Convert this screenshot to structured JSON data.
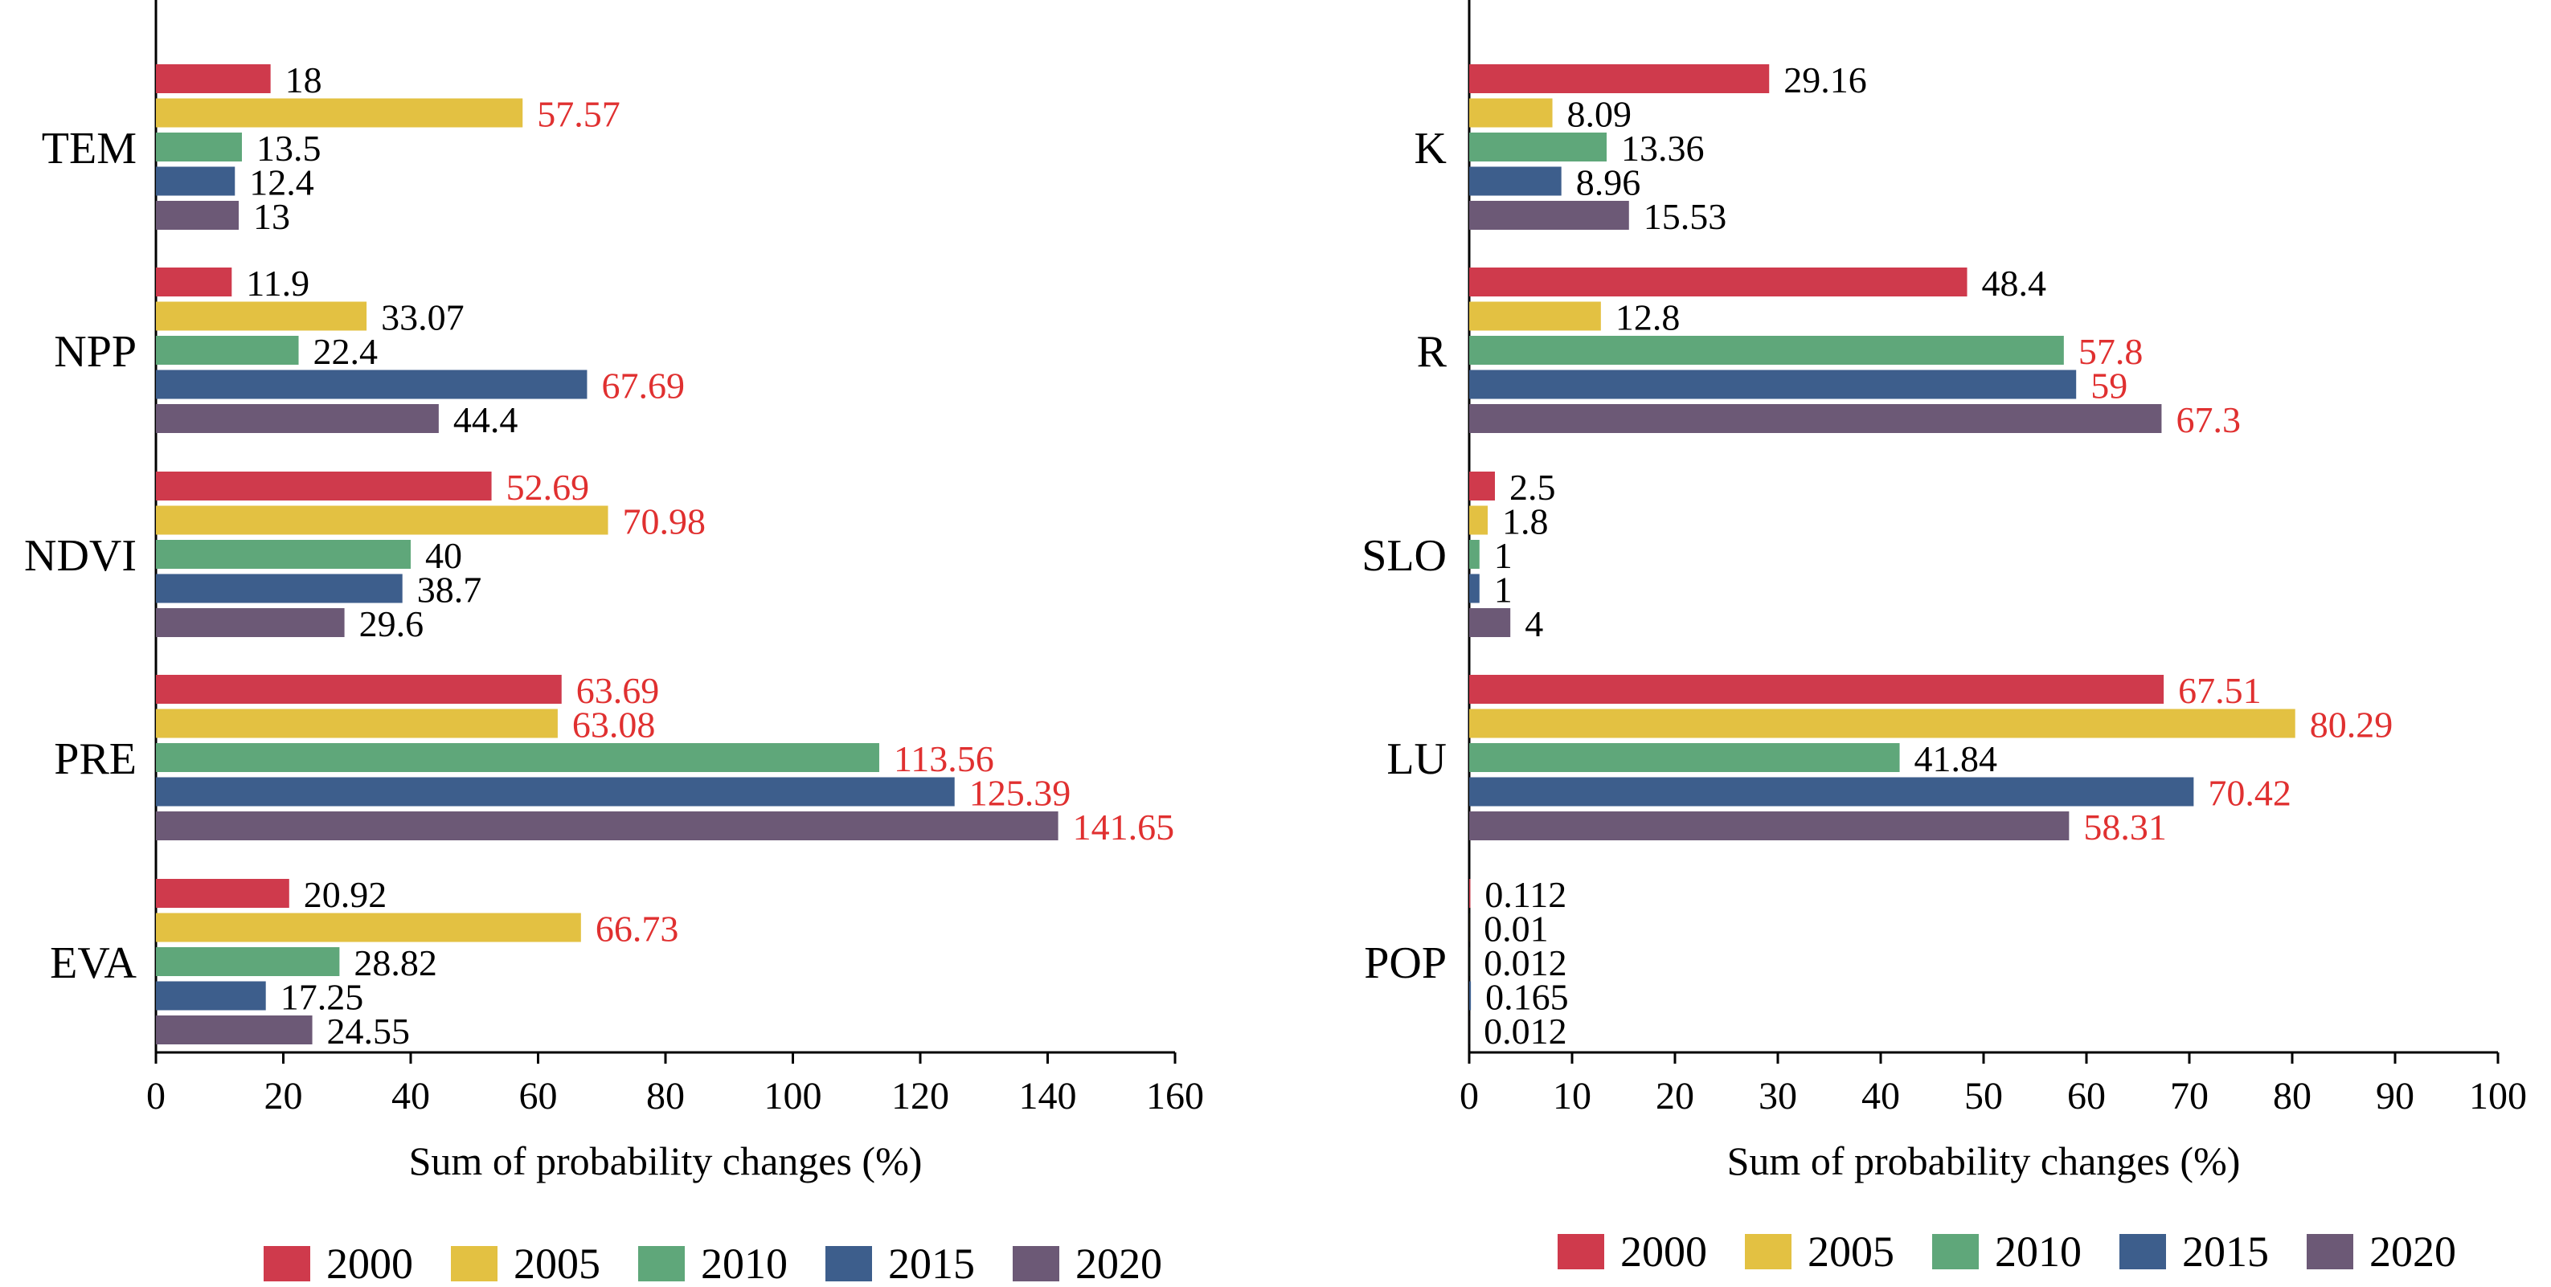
{
  "legend_years": [
    "2000",
    "2005",
    "2010",
    "2015",
    "2020"
  ],
  "colors": {
    "2000": "#cf3a4c",
    "2005": "#e3c142",
    "2010": "#5fa77a",
    "2015": "#3d5e8c",
    "2020": "#6c5976",
    "label_highlight": "#e03030",
    "label_normal": "#000000",
    "axis": "#000000"
  },
  "chart_data": [
    {
      "type": "bar",
      "orientation": "horizontal",
      "xlabel": "Sum of probability changes (%)",
      "xlim": [
        0,
        160
      ],
      "xticks": [
        0,
        20,
        40,
        60,
        80,
        100,
        120,
        140,
        160
      ],
      "categories": [
        "TEM",
        "NPP",
        "NDVI",
        "PRE",
        "EVA"
      ],
      "series": [
        {
          "name": "2000",
          "values": [
            18,
            11.9,
            52.69,
            63.69,
            20.92
          ],
          "labels": [
            "18",
            "11.9",
            "52.69",
            "63.69",
            "20.92"
          ],
          "highlighted": [
            false,
            false,
            true,
            true,
            false
          ]
        },
        {
          "name": "2005",
          "values": [
            57.57,
            33.07,
            70.98,
            63.08,
            66.73
          ],
          "labels": [
            "57.57",
            "33.07",
            "70.98",
            "63.08",
            "66.73"
          ],
          "highlighted": [
            true,
            false,
            true,
            true,
            true
          ]
        },
        {
          "name": "2010",
          "values": [
            13.5,
            22.4,
            40,
            113.56,
            28.82
          ],
          "labels": [
            "13.5",
            "22.4",
            "40",
            "113.56",
            "28.82"
          ],
          "highlighted": [
            false,
            false,
            false,
            true,
            false
          ]
        },
        {
          "name": "2015",
          "values": [
            12.4,
            67.69,
            38.7,
            125.39,
            17.25
          ],
          "labels": [
            "12.4",
            "67.69",
            "38.7",
            "125.39",
            "17.25"
          ],
          "highlighted": [
            false,
            true,
            false,
            true,
            false
          ]
        },
        {
          "name": "2020",
          "values": [
            13,
            44.4,
            29.6,
            141.65,
            24.55
          ],
          "labels": [
            "13",
            "44.4",
            "29.6",
            "141.65",
            "24.55"
          ],
          "highlighted": [
            false,
            false,
            false,
            true,
            false
          ]
        }
      ],
      "legend": "bottom",
      "grid": false
    },
    {
      "type": "bar",
      "orientation": "horizontal",
      "xlabel": "Sum of probability changes (%)",
      "xlim": [
        0,
        100
      ],
      "xticks": [
        0,
        10,
        20,
        30,
        40,
        50,
        60,
        70,
        80,
        90,
        100
      ],
      "categories": [
        "K",
        "R",
        "SLO",
        "LU",
        "POP"
      ],
      "series": [
        {
          "name": "2000",
          "values": [
            29.16,
            48.4,
            2.5,
            67.51,
            0.112
          ],
          "labels": [
            "29.16",
            "48.4",
            "2.5",
            "67.51",
            "0.112"
          ],
          "highlighted": [
            false,
            false,
            false,
            true,
            false
          ]
        },
        {
          "name": "2005",
          "values": [
            8.09,
            12.8,
            1.8,
            80.29,
            0.01
          ],
          "labels": [
            "8.09",
            "12.8",
            "1.8",
            "80.29",
            "0.01"
          ],
          "highlighted": [
            false,
            false,
            false,
            true,
            false
          ]
        },
        {
          "name": "2010",
          "values": [
            13.36,
            57.8,
            1,
            41.84,
            0.012
          ],
          "labels": [
            "13.36",
            "57.8",
            "1",
            "41.84",
            "0.012"
          ],
          "highlighted": [
            false,
            true,
            false,
            false,
            false
          ]
        },
        {
          "name": "2015",
          "values": [
            8.96,
            59,
            1,
            70.42,
            0.165
          ],
          "labels": [
            "8.96",
            "59",
            "1",
            "70.42",
            "0.165"
          ],
          "highlighted": [
            false,
            true,
            false,
            true,
            false
          ]
        },
        {
          "name": "2020",
          "values": [
            15.53,
            67.3,
            4,
            58.31,
            0.012
          ],
          "labels": [
            "15.53",
            "67.3",
            "4",
            "58.31",
            "0.012"
          ],
          "highlighted": [
            false,
            true,
            false,
            true,
            false
          ]
        }
      ],
      "legend": "bottom",
      "grid": false
    }
  ]
}
